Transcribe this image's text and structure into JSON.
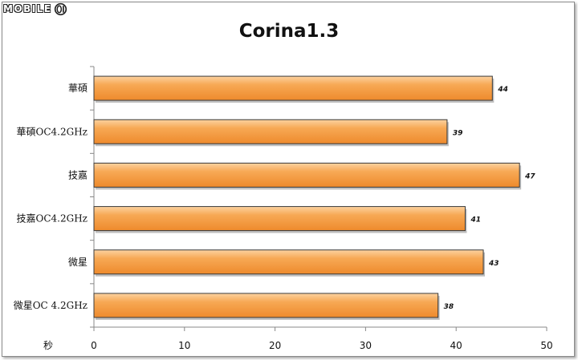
{
  "logo": {
    "text": "MOBILE",
    "mark_icon": "mobile01-logo-icon"
  },
  "chart_data": {
    "type": "bar",
    "orientation": "horizontal",
    "title": "Corina1.3",
    "categories": [
      "華碩",
      "華碩OC4.2GHz",
      "技嘉",
      "技嘉OC4.2GHz",
      "微星",
      "微星OC 4.2GHz"
    ],
    "values": [
      44,
      39,
      47,
      41,
      43,
      38
    ],
    "value_labels": [
      "44",
      "39",
      "47",
      "41",
      "43",
      "38"
    ],
    "xlabel": "秒",
    "ylabel": "",
    "xlim": [
      0,
      50
    ],
    "x_ticks": [
      0,
      10,
      20,
      30,
      40,
      50
    ],
    "x_tick_labels": [
      "0",
      "10",
      "20",
      "30",
      "40",
      "50"
    ],
    "grid": false,
    "legend": "none",
    "bar_color": "#f5a04a",
    "bar_edge_color": "#3a3a3a"
  }
}
